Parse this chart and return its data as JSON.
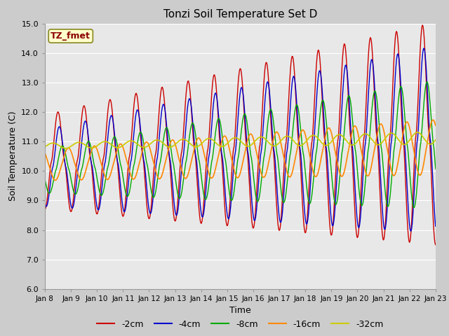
{
  "title": "Tonzi Soil Temperature Set D",
  "xlabel": "Time",
  "ylabel": "Soil Temperature (C)",
  "ylim": [
    6.0,
    15.0
  ],
  "yticks": [
    6.0,
    7.0,
    8.0,
    9.0,
    10.0,
    11.0,
    12.0,
    13.0,
    14.0,
    15.0
  ],
  "x_labels": [
    "Jan 8",
    "Jan 9",
    "Jan 10",
    "Jan 11",
    "Jan 12",
    "Jan 13",
    "Jan 14",
    "Jan 15",
    "Jan 16",
    "Jan 17",
    "Jan 18",
    "Jan 19",
    "Jan 20",
    "Jan 21",
    "Jan 22",
    "Jan 23"
  ],
  "colors": {
    "-2cm": "#cc0000",
    "-4cm": "#0000cc",
    "-8cm": "#00aa00",
    "-16cm": "#ff8800",
    "-32cm": "#cccc00"
  },
  "legend_label": "TZ_fmet",
  "bg_color": "#e8e8e8",
  "fig_bg": "#cccccc"
}
